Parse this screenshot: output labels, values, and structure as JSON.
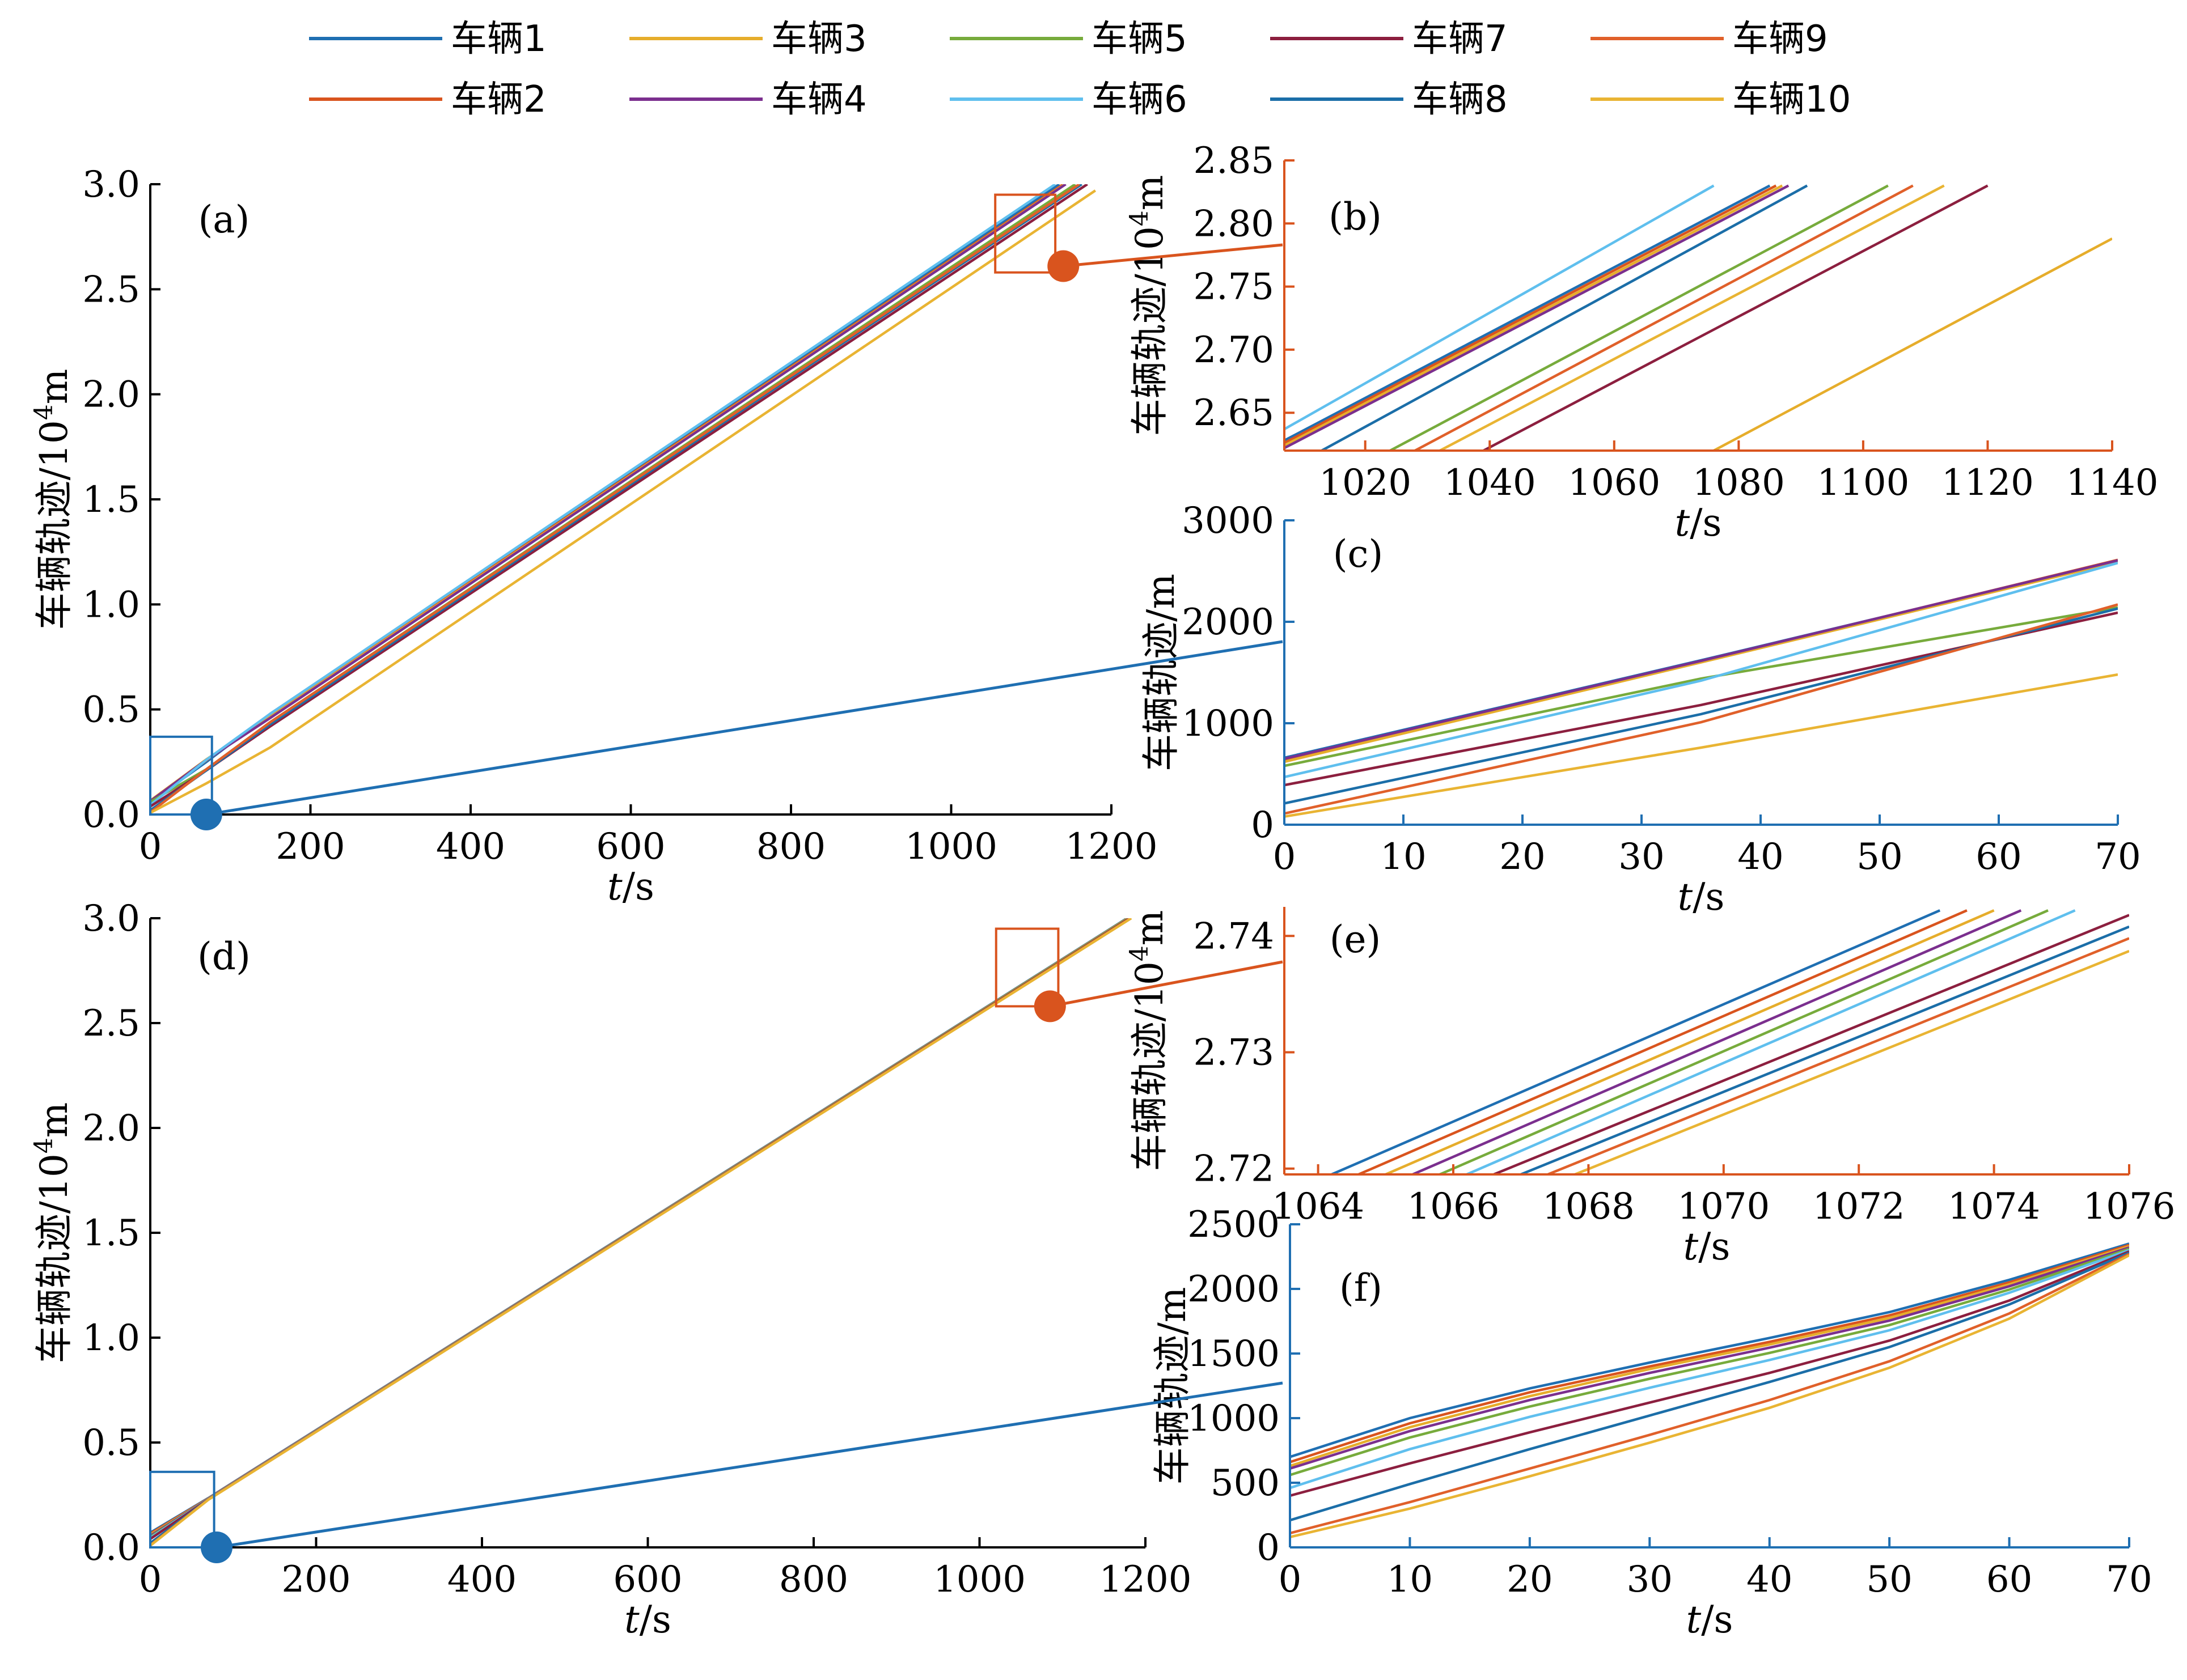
{
  "legend": {
    "entries": [
      {
        "label": "车辆1",
        "color": "#1f6fb2"
      },
      {
        "label": "车辆3",
        "color": "#e6ad2b"
      },
      {
        "label": "车辆5",
        "color": "#77ab3c"
      },
      {
        "label": "车辆7",
        "color": "#8c1f3f"
      },
      {
        "label": "车辆9",
        "color": "#e0602a"
      },
      {
        "label": "车辆2",
        "color": "#d9541e"
      },
      {
        "label": "车辆4",
        "color": "#7b2f8e"
      },
      {
        "label": "车辆6",
        "color": "#5fbfee"
      },
      {
        "label": "车辆8",
        "color": "#1b6ea8"
      },
      {
        "label": "车辆10",
        "color": "#e9b433"
      }
    ]
  },
  "colors": {
    "vehicles": [
      "#1f6fb2",
      "#d9541e",
      "#e6ad2b",
      "#7b2f8e",
      "#77ab3c",
      "#5fbfee",
      "#8c1f3f",
      "#1b6ea8",
      "#e0602a",
      "#e9b433"
    ],
    "zoom_blue": "#1f6fb2",
    "zoom_orange": "#d9541e"
  },
  "chart_data": [
    {
      "id": "a",
      "panel_label": "(a)",
      "type": "line",
      "xlabel": "t/s",
      "ylabel": "车辆轨迹/10^4m",
      "xlim": [
        0,
        1200
      ],
      "ylim": [
        0,
        3.0
      ],
      "xticks": [
        0,
        200,
        400,
        600,
        800,
        1000,
        1200
      ],
      "xtick_labels": [
        "0",
        "200",
        "400",
        "600",
        "800",
        "1000",
        "1200"
      ],
      "yticks": [
        0,
        0.5,
        1.0,
        1.5,
        2.0,
        2.5,
        3.0
      ],
      "ytick_labels": [
        "0.0",
        "0.5",
        "1.0",
        "1.5",
        "2.0",
        "2.5",
        "3.0"
      ],
      "series": [
        {
          "name": "车辆1",
          "x": [
            0,
            70,
            150,
            1135
          ],
          "y": [
            0.06,
            0.25,
            0.48,
            3.0
          ]
        },
        {
          "name": "车辆2",
          "x": [
            0,
            70,
            150,
            1140
          ],
          "y": [
            0.063,
            0.258,
            0.47,
            3.0
          ]
        },
        {
          "name": "车辆3",
          "x": [
            0,
            70,
            150,
            1142
          ],
          "y": [
            0.066,
            0.262,
            0.465,
            3.0
          ]
        },
        {
          "name": "车辆4",
          "x": [
            0,
            70,
            150,
            1143
          ],
          "y": [
            0.063,
            0.26,
            0.46,
            3.0
          ]
        },
        {
          "name": "车辆5",
          "x": [
            0,
            70,
            150,
            1155
          ],
          "y": [
            0.06,
            0.215,
            0.44,
            3.0
          ]
        },
        {
          "name": "车辆6",
          "x": [
            0,
            70,
            150,
            1130
          ],
          "y": [
            0.045,
            0.26,
            0.48,
            3.0
          ]
        },
        {
          "name": "车辆7",
          "x": [
            0,
            70,
            150,
            1170
          ],
          "y": [
            0.038,
            0.21,
            0.42,
            3.0
          ]
        },
        {
          "name": "车辆8",
          "x": [
            0,
            70,
            150,
            1163
          ],
          "y": [
            0.02,
            0.21,
            0.43,
            3.0
          ]
        },
        {
          "name": "车辆9",
          "x": [
            0,
            70,
            150,
            1160
          ],
          "y": [
            0.01,
            0.215,
            0.44,
            3.0
          ]
        },
        {
          "name": "车辆10",
          "x": [
            0,
            70,
            150,
            1180
          ],
          "y": [
            0.008,
            0.148,
            0.32,
            2.97
          ]
        }
      ]
    },
    {
      "id": "b",
      "panel_label": "(b)",
      "type": "line",
      "xlabel": "t/s",
      "ylabel": "车辆轨迹/10^4m",
      "xlim": [
        1007,
        1140
      ],
      "ylim": [
        2.62,
        2.85
      ],
      "xticks": [
        1020,
        1040,
        1060,
        1080,
        1100,
        1120,
        1140
      ],
      "xtick_labels": [
        "1020",
        "1040",
        "1060",
        "1080",
        "1100",
        "1120",
        "1140"
      ],
      "yticks": [
        2.65,
        2.7,
        2.75,
        2.8,
        2.85
      ],
      "ytick_labels": [
        "2.65",
        "2.70",
        "2.75",
        "2.80",
        "2.85"
      ],
      "series": [
        {
          "name": "车辆6",
          "x": [
            1007,
            1076
          ],
          "y": [
            2.637,
            2.83
          ]
        },
        {
          "name": "车辆1",
          "x": [
            1007,
            1085
          ],
          "y": [
            2.628,
            2.83
          ]
        },
        {
          "name": "车辆2",
          "x": [
            1007,
            1086
          ],
          "y": [
            2.626,
            2.83
          ]
        },
        {
          "name": "车辆3",
          "x": [
            1007,
            1087
          ],
          "y": [
            2.624,
            2.83
          ]
        },
        {
          "name": "车辆4",
          "x": [
            1007,
            1088
          ],
          "y": [
            2.622,
            2.83
          ]
        },
        {
          "name": "车辆8",
          "x": [
            1013,
            1091
          ],
          "y": [
            2.62,
            2.83
          ]
        },
        {
          "name": "车辆5",
          "x": [
            1024,
            1104
          ],
          "y": [
            2.62,
            2.83
          ]
        },
        {
          "name": "车辆9",
          "x": [
            1028,
            1108
          ],
          "y": [
            2.62,
            2.83
          ]
        },
        {
          "name": "车辆10",
          "x": [
            1032,
            1113
          ],
          "y": [
            2.62,
            2.83
          ]
        },
        {
          "name": "车辆7",
          "x": [
            1039,
            1120
          ],
          "y": [
            2.62,
            2.83
          ]
        },
        {
          "name": "车辆3",
          "x": [
            1076,
            1140
          ],
          "y": [
            2.62,
            2.788
          ]
        }
      ]
    },
    {
      "id": "c",
      "panel_label": "(c)",
      "type": "line",
      "xlabel": "t/s",
      "ylabel": "车辆轨迹/m",
      "xlim": [
        0,
        70
      ],
      "ylim": [
        0,
        3000
      ],
      "xticks": [
        0,
        10,
        20,
        30,
        40,
        50,
        60,
        70
      ],
      "xtick_labels": [
        "0",
        "10",
        "20",
        "30",
        "40",
        "50",
        "60",
        "70"
      ],
      "yticks": [
        0,
        1000,
        2000,
        3000
      ],
      "ytick_labels": [
        "0",
        "1000",
        "2000",
        "3000"
      ],
      "series": [
        {
          "name": "车辆1",
          "x": [
            0,
            35,
            70
          ],
          "y": [
            660,
            1620,
            2600
          ]
        },
        {
          "name": "车辆2",
          "x": [
            0,
            35,
            70
          ],
          "y": [
            640,
            1610,
            2610
          ]
        },
        {
          "name": "车辆3",
          "x": [
            0,
            35,
            70
          ],
          "y": [
            620,
            1600,
            2590
          ]
        },
        {
          "name": "车辆4",
          "x": [
            0,
            35,
            70
          ],
          "y": [
            650,
            1615,
            2605
          ]
        },
        {
          "name": "车辆5",
          "x": [
            0,
            35,
            70
          ],
          "y": [
            580,
            1440,
            2140
          ]
        },
        {
          "name": "车辆6",
          "x": [
            0,
            35,
            70
          ],
          "y": [
            470,
            1420,
            2580
          ]
        },
        {
          "name": "车辆7",
          "x": [
            0,
            35,
            70
          ],
          "y": [
            390,
            1180,
            2090
          ]
        },
        {
          "name": "车辆8",
          "x": [
            0,
            35,
            70
          ],
          "y": [
            210,
            1090,
            2130
          ]
        },
        {
          "name": "车辆9",
          "x": [
            0,
            35,
            70
          ],
          "y": [
            110,
            1010,
            2170
          ]
        },
        {
          "name": "车辆10",
          "x": [
            0,
            35,
            70
          ],
          "y": [
            80,
            760,
            1480
          ]
        }
      ]
    },
    {
      "id": "d",
      "panel_label": "(d)",
      "type": "line",
      "xlabel": "t/s",
      "ylabel": "车辆轨迹/10^4m",
      "xlim": [
        0,
        1200
      ],
      "ylim": [
        0,
        3.0
      ],
      "xticks": [
        0,
        200,
        400,
        600,
        800,
        1000,
        1200
      ],
      "xtick_labels": [
        "0",
        "200",
        "400",
        "600",
        "800",
        "1000",
        "1200"
      ],
      "yticks": [
        0,
        0.5,
        1.0,
        1.5,
        2.0,
        2.5,
        3.0
      ],
      "ytick_labels": [
        "0.0",
        "0.5",
        "1.0",
        "1.5",
        "2.0",
        "2.5",
        "3.0"
      ],
      "series": [
        {
          "name": "车辆1",
          "x": [
            0,
            70,
            1178
          ],
          "y": [
            0.07,
            0.235,
            3.0
          ]
        },
        {
          "name": "车辆2",
          "x": [
            0,
            70,
            1179
          ],
          "y": [
            0.065,
            0.233,
            3.0
          ]
        },
        {
          "name": "车辆3",
          "x": [
            0,
            70,
            1179
          ],
          "y": [
            0.06,
            0.232,
            3.0
          ]
        },
        {
          "name": "车辆4",
          "x": [
            0,
            70,
            1180
          ],
          "y": [
            0.055,
            0.231,
            3.0
          ]
        },
        {
          "name": "车辆5",
          "x": [
            0,
            70,
            1180
          ],
          "y": [
            0.05,
            0.23,
            3.0
          ]
        },
        {
          "name": "车辆6",
          "x": [
            0,
            70,
            1181
          ],
          "y": [
            0.045,
            0.23,
            3.0
          ]
        },
        {
          "name": "车辆7",
          "x": [
            0,
            70,
            1181
          ],
          "y": [
            0.04,
            0.229,
            3.0
          ]
        },
        {
          "name": "车辆8",
          "x": [
            0,
            70,
            1182
          ],
          "y": [
            0.02,
            0.229,
            3.0
          ]
        },
        {
          "name": "车辆9",
          "x": [
            0,
            70,
            1182
          ],
          "y": [
            0.01,
            0.228,
            3.0
          ]
        },
        {
          "name": "车辆10",
          "x": [
            0,
            70,
            1183
          ],
          "y": [
            0.008,
            0.227,
            3.0
          ]
        }
      ]
    },
    {
      "id": "e",
      "panel_label": "(e)",
      "type": "line",
      "xlabel": "t/s",
      "ylabel": "车辆轨迹/10^4m",
      "xlim": [
        1063.5,
        1076
      ],
      "ylim": [
        2.7195,
        2.7425
      ],
      "xticks": [
        1064,
        1066,
        1068,
        1070,
        1072,
        1074,
        1076
      ],
      "xtick_labels": [
        "1064",
        "1066",
        "1068",
        "1070",
        "1072",
        "1074",
        "1076"
      ],
      "yticks": [
        2.72,
        2.73,
        2.74
      ],
      "ytick_labels": [
        "2.72",
        "2.73",
        "2.74"
      ],
      "series": [
        {
          "name": "车辆1",
          "x": [
            1064.2,
            1073.2
          ],
          "y": [
            2.7195,
            2.7422
          ]
        },
        {
          "name": "车辆2",
          "x": [
            1064.6,
            1073.6
          ],
          "y": [
            2.7195,
            2.7422
          ]
        },
        {
          "name": "车辆3",
          "x": [
            1065.0,
            1074.0
          ],
          "y": [
            2.7195,
            2.7422
          ]
        },
        {
          "name": "车辆4",
          "x": [
            1065.4,
            1074.4
          ],
          "y": [
            2.7195,
            2.7422
          ]
        },
        {
          "name": "车辆5",
          "x": [
            1065.8,
            1074.8
          ],
          "y": [
            2.7195,
            2.7422
          ]
        },
        {
          "name": "车辆6",
          "x": [
            1066.2,
            1075.2
          ],
          "y": [
            2.7195,
            2.7422
          ]
        },
        {
          "name": "车辆7",
          "x": [
            1066.6,
            1076.0
          ],
          "y": [
            2.7195,
            2.7418
          ]
        },
        {
          "name": "车辆8",
          "x": [
            1067.0,
            1076.0
          ],
          "y": [
            2.7195,
            2.7408
          ]
        },
        {
          "name": "车辆9",
          "x": [
            1067.4,
            1076.0
          ],
          "y": [
            2.7195,
            2.7398
          ]
        },
        {
          "name": "车辆10",
          "x": [
            1067.8,
            1076.0
          ],
          "y": [
            2.7195,
            2.7387
          ]
        }
      ]
    },
    {
      "id": "f",
      "panel_label": "(f)",
      "type": "line",
      "xlabel": "t/s",
      "ylabel": "车辆轨迹/m",
      "xlim": [
        0,
        70
      ],
      "ylim": [
        0,
        2500
      ],
      "xticks": [
        0,
        10,
        20,
        30,
        40,
        50,
        60,
        70
      ],
      "xtick_labels": [
        "0",
        "10",
        "20",
        "30",
        "40",
        "50",
        "60",
        "70"
      ],
      "yticks": [
        0,
        500,
        1000,
        1500,
        2000,
        2500
      ],
      "ytick_labels": [
        "0",
        "500",
        "1000",
        "1500",
        "2000",
        "2500"
      ],
      "series": [
        {
          "name": "车辆1",
          "x": [
            0,
            10,
            20,
            30,
            40,
            50,
            60,
            70
          ],
          "y": [
            700,
            1000,
            1230,
            1430,
            1620,
            1820,
            2070,
            2350
          ]
        },
        {
          "name": "车辆2",
          "x": [
            0,
            10,
            20,
            30,
            40,
            50,
            60,
            70
          ],
          "y": [
            660,
            960,
            1200,
            1400,
            1590,
            1795,
            2050,
            2340
          ]
        },
        {
          "name": "车辆3",
          "x": [
            0,
            10,
            20,
            30,
            40,
            50,
            60,
            70
          ],
          "y": [
            630,
            930,
            1170,
            1380,
            1570,
            1775,
            2035,
            2330
          ]
        },
        {
          "name": "车辆4",
          "x": [
            0,
            10,
            20,
            30,
            40,
            50,
            60,
            70
          ],
          "y": [
            610,
            900,
            1140,
            1350,
            1545,
            1755,
            2020,
            2320
          ]
        },
        {
          "name": "车辆5",
          "x": [
            0,
            10,
            20,
            30,
            40,
            50,
            60,
            70
          ],
          "y": [
            560,
            850,
            1090,
            1305,
            1505,
            1720,
            1995,
            2310
          ]
        },
        {
          "name": "车辆6",
          "x": [
            0,
            10,
            20,
            30,
            40,
            50,
            60,
            70
          ],
          "y": [
            460,
            760,
            1010,
            1235,
            1450,
            1680,
            1970,
            2300
          ]
        },
        {
          "name": "车辆7",
          "x": [
            0,
            10,
            20,
            30,
            40,
            50,
            60,
            70
          ],
          "y": [
            400,
            650,
            890,
            1120,
            1350,
            1600,
            1910,
            2290
          ]
        },
        {
          "name": "车辆8",
          "x": [
            0,
            10,
            20,
            30,
            40,
            50,
            60,
            70
          ],
          "y": [
            210,
            490,
            760,
            1020,
            1280,
            1550,
            1880,
            2280
          ]
        },
        {
          "name": "车辆9",
          "x": [
            0,
            10,
            20,
            30,
            40,
            50,
            60,
            70
          ],
          "y": [
            110,
            350,
            610,
            870,
            1140,
            1440,
            1810,
            2270
          ]
        },
        {
          "name": "车辆10",
          "x": [
            0,
            10,
            20,
            30,
            40,
            50,
            60,
            70
          ],
          "y": [
            80,
            300,
            550,
            810,
            1080,
            1390,
            1770,
            2260
          ]
        }
      ]
    }
  ]
}
